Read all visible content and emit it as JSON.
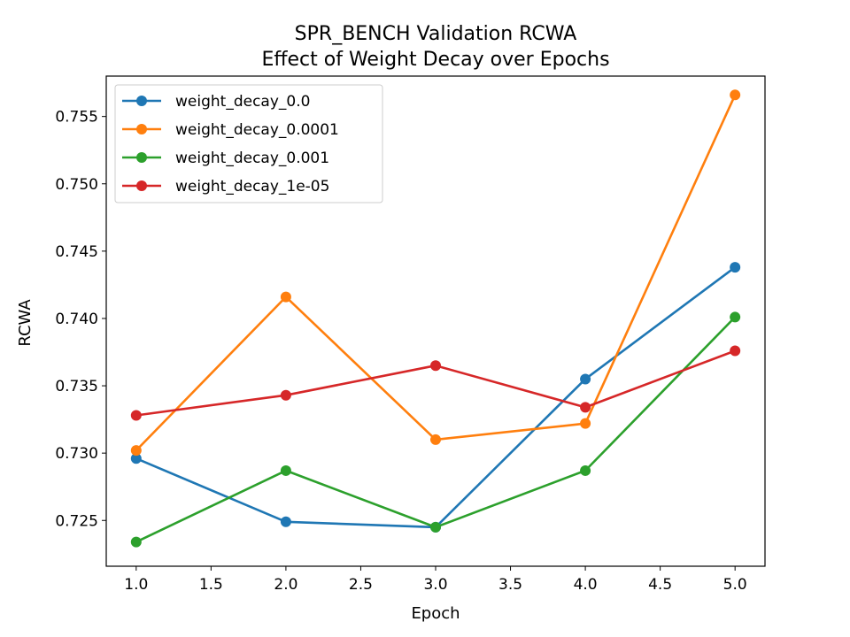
{
  "chart_data": {
    "type": "line",
    "title": "SPR_BENCH Validation RCWA",
    "subtitle": "Effect of Weight Decay over Epochs",
    "xlabel": "Epoch",
    "ylabel": "RCWA",
    "xlim": [
      0.8,
      5.2
    ],
    "ylim": [
      0.7216,
      0.758
    ],
    "xticks": [
      1.0,
      1.5,
      2.0,
      2.5,
      3.0,
      3.5,
      4.0,
      4.5,
      5.0
    ],
    "xtick_labels": [
      "1.0",
      "1.5",
      "2.0",
      "2.5",
      "3.0",
      "3.5",
      "4.0",
      "4.5",
      "5.0"
    ],
    "yticks": [
      0.725,
      0.73,
      0.735,
      0.74,
      0.745,
      0.75,
      0.755
    ],
    "ytick_labels": [
      "0.725",
      "0.730",
      "0.735",
      "0.740",
      "0.745",
      "0.750",
      "0.755"
    ],
    "grid": false,
    "legend_position": "top-left",
    "x": [
      1,
      2,
      3,
      4,
      5
    ],
    "series": [
      {
        "name": "weight_decay_0.0",
        "color": "#1f77b4",
        "values": [
          0.7296,
          0.7249,
          0.7245,
          0.7355,
          0.7438
        ]
      },
      {
        "name": "weight_decay_0.0001",
        "color": "#ff7f0e",
        "values": [
          0.7302,
          0.7416,
          0.731,
          0.7322,
          0.7566
        ]
      },
      {
        "name": "weight_decay_0.001",
        "color": "#2ca02c",
        "values": [
          0.7234,
          0.7287,
          0.7245,
          0.7287,
          0.7401
        ]
      },
      {
        "name": "weight_decay_1e-05",
        "color": "#d62728",
        "values": [
          0.7328,
          0.7343,
          0.7365,
          0.7334,
          0.7376
        ]
      }
    ]
  }
}
